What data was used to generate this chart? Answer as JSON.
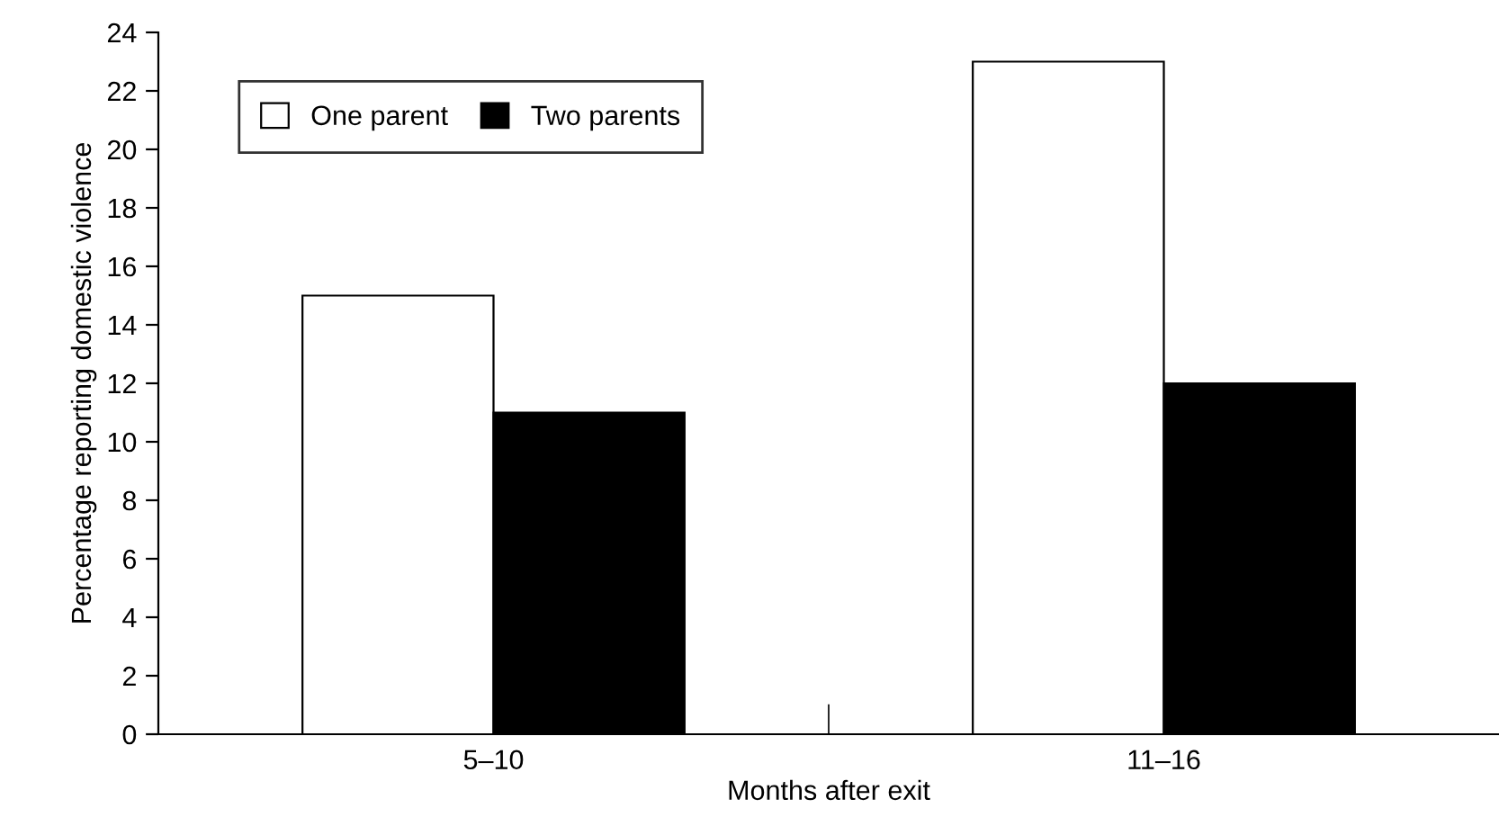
{
  "chart_data": {
    "type": "bar",
    "xlabel": "Months after exit",
    "ylabel": "Percentage reporting domestic violence",
    "categories": [
      "5–10",
      "11–16"
    ],
    "series": [
      {
        "name": "One parent",
        "color": "#ffffff",
        "values": [
          15,
          23
        ]
      },
      {
        "name": "Two parents",
        "color": "#000000",
        "values": [
          11,
          12
        ]
      }
    ],
    "ylim": [
      0,
      24
    ],
    "yticks": [
      0,
      2,
      4,
      6,
      8,
      10,
      12,
      14,
      16,
      18,
      20,
      22,
      24
    ],
    "grid": false,
    "legend": "top left"
  }
}
